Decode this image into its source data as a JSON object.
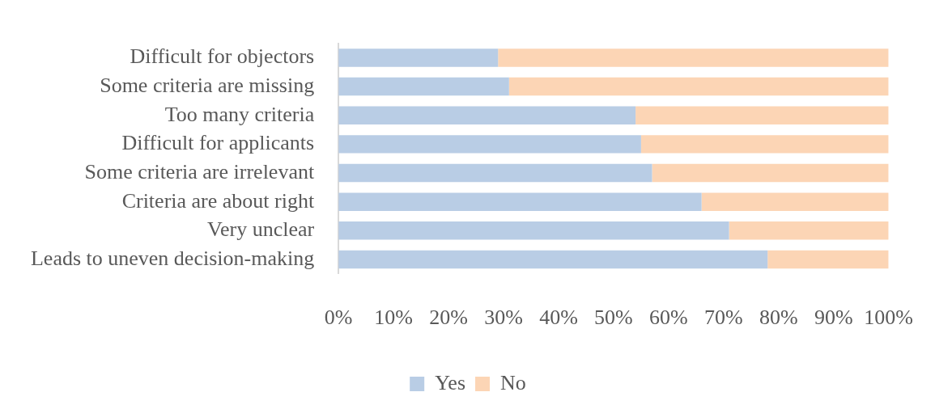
{
  "chart_data": {
    "type": "bar",
    "orientation": "horizontal",
    "stacked": true,
    "categories": [
      "Difficult for objectors",
      "Some criteria are missing",
      "Too many criteria",
      "Difficult for applicants",
      "Some criteria are irrelevant",
      "Criteria are about right",
      "Very unclear",
      "Leads to uneven decision-making"
    ],
    "series": [
      {
        "name": "Yes",
        "color": "#b9cde5",
        "values": [
          29,
          31,
          54,
          55,
          57,
          66,
          71,
          78
        ]
      },
      {
        "name": "No",
        "color": "#fcd5b5",
        "values": [
          71,
          69,
          46,
          45,
          43,
          34,
          29,
          22
        ]
      }
    ],
    "xlim": [
      0,
      100
    ],
    "xticks": [
      {
        "value": 0,
        "label": "0%"
      },
      {
        "value": 10,
        "label": "10%"
      },
      {
        "value": 20,
        "label": "20%"
      },
      {
        "value": 30,
        "label": "30%"
      },
      {
        "value": 40,
        "label": "40%"
      },
      {
        "value": 50,
        "label": "50%"
      },
      {
        "value": 60,
        "label": "60%"
      },
      {
        "value": 70,
        "label": "70%"
      },
      {
        "value": 80,
        "label": "80%"
      },
      {
        "value": 90,
        "label": "90%"
      },
      {
        "value": 100,
        "label": "100%"
      }
    ],
    "grid": false,
    "legend": "bottom"
  }
}
